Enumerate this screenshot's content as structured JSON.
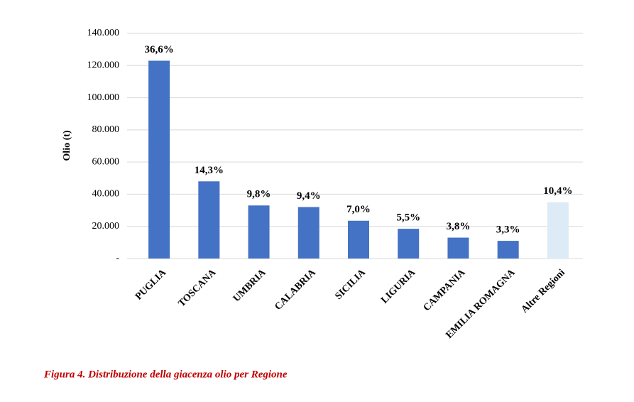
{
  "chart_data": {
    "type": "bar",
    "caption": "Figura 4. Distribuzione della giacenza olio per Regione",
    "ylabel": "Olio (t)",
    "categories": [
      "PUGLIA",
      "TOSCANA",
      "UMBRIA",
      "CALABRIA",
      "SICILIA",
      "LIGURIA",
      "CAMPANIA",
      "EMILIA ROMAGNA",
      "Altre Regioni"
    ],
    "values": [
      123000,
      48000,
      33000,
      32000,
      23500,
      18500,
      13000,
      11000,
      35000
    ],
    "shares": [
      36.6,
      14.3,
      9.8,
      9.4,
      7.0,
      5.5,
      3.8,
      3.3,
      10.4
    ],
    "share_labels": [
      "36,6%",
      "14,3%",
      "9,8%",
      "9,4%",
      "7,0%",
      "5,5%",
      "3,8%",
      "3,3%",
      "10,4%"
    ],
    "colors": [
      "#4472c4",
      "#4472c4",
      "#4472c4",
      "#4472c4",
      "#4472c4",
      "#4472c4",
      "#4472c4",
      "#4472c4",
      "#ddebf7"
    ],
    "ylim": [
      0,
      140000
    ],
    "yticks": [
      {
        "value": 0,
        "label": "-"
      },
      {
        "value": 20000,
        "label": "20.000"
      },
      {
        "value": 40000,
        "label": "40.000"
      },
      {
        "value": 60000,
        "label": "60.000"
      },
      {
        "value": 80000,
        "label": "80.000"
      },
      {
        "value": 100000,
        "label": "100.000"
      },
      {
        "value": 120000,
        "label": "120.000"
      },
      {
        "value": 140000,
        "label": "140.000"
      }
    ],
    "grid": true
  }
}
